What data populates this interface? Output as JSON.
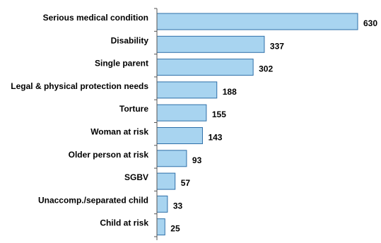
{
  "chart_data": {
    "type": "bar",
    "orientation": "horizontal",
    "title": "",
    "xlabel": "",
    "ylabel": "",
    "categories": [
      "Serious medical condition",
      "Disability",
      "Single parent",
      "Legal & physical protection needs",
      "Torture",
      "Woman at risk",
      "Older person at risk",
      "SGBV",
      "Unaccomp./separated child",
      "Child at risk"
    ],
    "values": [
      630,
      337,
      302,
      188,
      155,
      143,
      93,
      57,
      33,
      25
    ],
    "value_labels": [
      "630",
      "337",
      "302",
      "188",
      "155",
      "143",
      "93",
      "57",
      "33",
      "25"
    ],
    "xlim": [
      0,
      630
    ],
    "grid": false,
    "legend": "none",
    "colors": {
      "bar_fill": "#a8d4f0",
      "bar_stroke": "#2e6fa8",
      "axis": "#555555",
      "text": "#000000"
    }
  }
}
